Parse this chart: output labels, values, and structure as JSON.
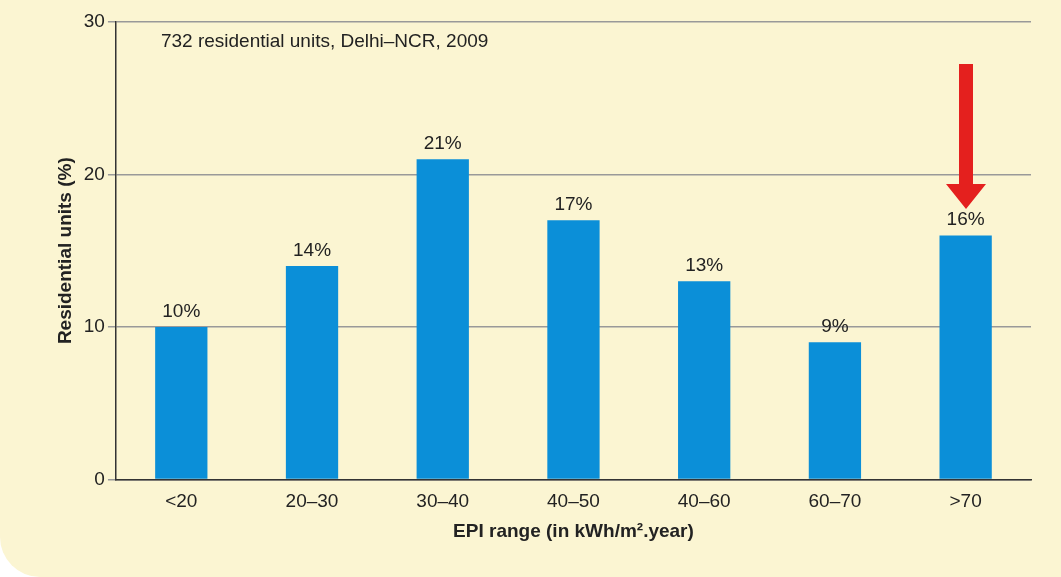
{
  "chart_data": {
    "type": "bar",
    "xlabel": "EPI range (in kWh/m².year)",
    "ylabel": "Residential units (%)",
    "annotations": [
      "732 residential units, Delhi–NCR, 2009"
    ],
    "categories": [
      "<20",
      "20–30",
      "30–40",
      "40–50",
      "40–60",
      "60–70",
      ">70"
    ],
    "values": [
      10,
      14,
      21,
      17,
      13,
      9,
      16
    ],
    "value_labels": [
      "10%",
      "14%",
      "21%",
      "17%",
      "13%",
      "9%",
      "16%"
    ],
    "color": "#0b8fd8",
    "ylim": [
      0,
      30
    ],
    "yticks": [
      0,
      10,
      20,
      30
    ],
    "grid": "y",
    "legend": false
  }
}
